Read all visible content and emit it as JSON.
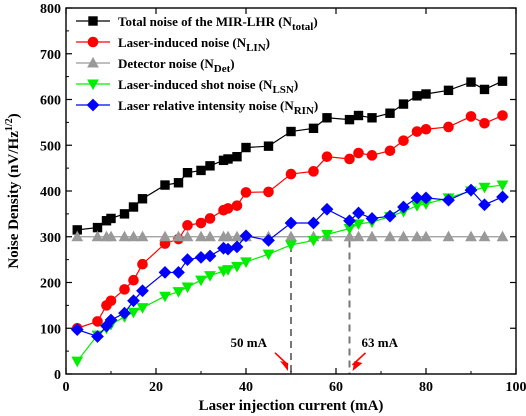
{
  "chart_data": {
    "type": "line",
    "xlabel": "Laser injection current (mA)",
    "ylabel": "Noise Density (nV/Hz",
    "ylabel_sup": "1/2",
    "ylabel_close": ")",
    "xlim": [
      0,
      100
    ],
    "ylim": [
      0,
      800
    ],
    "xticks": [
      0,
      20,
      40,
      60,
      80,
      100
    ],
    "yticks": [
      0,
      100,
      200,
      300,
      400,
      500,
      600,
      700,
      800
    ],
    "grid": false,
    "legend_position": "top-left",
    "series": [
      {
        "name": "Total noise of the MIR-LHR (N",
        "name_sub": "total",
        "name_close": ")",
        "color": "#000000",
        "marker": "square",
        "x": [
          2.5,
          7,
          9,
          10,
          13,
          15,
          17,
          22,
          25,
          27,
          30,
          32,
          35,
          36,
          38,
          40,
          45,
          50,
          55,
          58,
          63,
          65,
          68,
          72,
          75,
          78,
          80,
          85,
          90,
          93,
          97
        ],
        "y": [
          315,
          320,
          335,
          340,
          350,
          365,
          383,
          413,
          418,
          440,
          445,
          455,
          467,
          470,
          475,
          495,
          498,
          530,
          537,
          560,
          556,
          565,
          560,
          570,
          590,
          608,
          612,
          620,
          638,
          622,
          640
        ]
      },
      {
        "name": "Laser-induced noise (N",
        "name_sub": "LIN",
        "name_close": ")",
        "color": "#ff0000",
        "marker": "circle",
        "x": [
          2.5,
          7,
          9,
          10,
          13,
          15,
          17,
          22,
          25,
          27,
          30,
          32,
          35,
          36,
          38,
          40,
          45,
          50,
          55,
          58,
          63,
          65,
          68,
          72,
          75,
          78,
          80,
          85,
          90,
          93,
          97
        ],
        "y": [
          100,
          115,
          150,
          160,
          185,
          205,
          240,
          285,
          295,
          325,
          330,
          340,
          358,
          362,
          368,
          397,
          398,
          437,
          443,
          475,
          470,
          483,
          478,
          488,
          510,
          530,
          535,
          540,
          563,
          548,
          565
        ]
      },
      {
        "name": "Detector noise (N",
        "name_sub": "Det",
        "name_close": ")",
        "color": "#999999",
        "marker": "triangle-up",
        "x": [
          2.5,
          7,
          9,
          10,
          13,
          15,
          17,
          22,
          25,
          27,
          30,
          32,
          35,
          36,
          38,
          40,
          45,
          50,
          55,
          58,
          63,
          65,
          68,
          72,
          75,
          78,
          80,
          85,
          90,
          93,
          97
        ],
        "y": [
          300,
          300,
          300,
          300,
          300,
          300,
          300,
          300,
          300,
          300,
          300,
          300,
          300,
          300,
          300,
          300,
          300,
          300,
          300,
          300,
          300,
          300,
          300,
          300,
          300,
          300,
          300,
          300,
          300,
          300,
          300
        ]
      },
      {
        "name": "Laser-induced shot noise (N",
        "name_sub": "LSN",
        "name_close": ")",
        "color": "#00ee00",
        "marker": "triangle-down",
        "x": [
          2.5,
          7,
          9,
          10,
          13,
          15,
          17,
          22,
          25,
          27,
          30,
          32,
          35,
          36,
          38,
          40,
          45,
          50,
          55,
          58,
          63,
          65,
          68,
          72,
          75,
          78,
          80,
          85,
          90,
          93,
          97
        ],
        "y": [
          28,
          85,
          100,
          108,
          125,
          135,
          145,
          170,
          180,
          190,
          205,
          215,
          225,
          228,
          235,
          245,
          262,
          282,
          292,
          305,
          318,
          328,
          332,
          344,
          355,
          368,
          372,
          385,
          400,
          408,
          413
        ]
      },
      {
        "name": "Laser relative intensity noise (N",
        "name_sub": "RIN",
        "name_close": ")",
        "color": "#0000ff",
        "marker": "diamond",
        "x": [
          2.5,
          7,
          9,
          10,
          13,
          15,
          17,
          22,
          25,
          27,
          30,
          32,
          35,
          36,
          38,
          40,
          45,
          50,
          55,
          58,
          63,
          65,
          68,
          72,
          75,
          78,
          80,
          85,
          90,
          93,
          97
        ],
        "y": [
          97,
          82,
          105,
          118,
          133,
          160,
          182,
          222,
          222,
          250,
          255,
          258,
          275,
          273,
          278,
          302,
          292,
          330,
          330,
          360,
          335,
          352,
          340,
          345,
          365,
          385,
          385,
          380,
          402,
          370,
          387
        ]
      }
    ],
    "annotations": [
      {
        "text": "50 mA",
        "x": 50,
        "side": "left",
        "color": "#ff0000"
      },
      {
        "text": "63 mA",
        "x": 63,
        "side": "right",
        "color": "#ff0000"
      }
    ],
    "reference_line_y": 300
  }
}
